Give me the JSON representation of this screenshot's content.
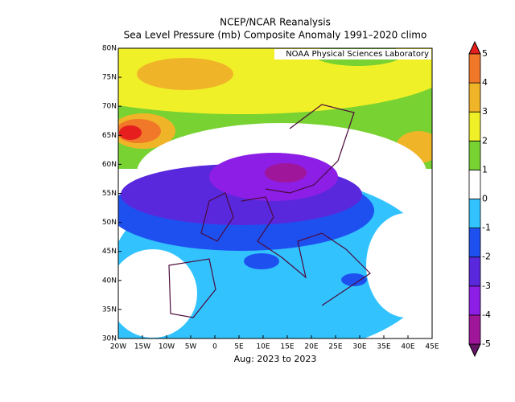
{
  "title": "NCEP/NCAR Reanalysis",
  "subtitle": "Sea Level Pressure (mb) Composite Anomaly 1991–2020 climo",
  "credit": "NOAA Physical Sciences Laboratory",
  "footer": "Aug: 2023 to 2023",
  "lon_ticks": [
    {
      "value": -20,
      "label": "20W"
    },
    {
      "value": -15,
      "label": "15W"
    },
    {
      "value": -10,
      "label": "10W"
    },
    {
      "value": -5,
      "label": "5W"
    },
    0,
    {
      "value": 5,
      "label": "5E"
    },
    {
      "value": 10,
      "label": "10E"
    },
    {
      "value": 15,
      "label": "15E"
    },
    {
      "value": 20,
      "label": "20E"
    },
    {
      "value": 25,
      "label": "25E"
    },
    {
      "value": 30,
      "label": "30E"
    },
    {
      "value": 35,
      "label": "35E"
    },
    {
      "value": 40,
      "label": "40E"
    },
    {
      "value": 45,
      "label": "45E"
    }
  ],
  "lat_ticks": [
    {
      "value": 30,
      "label": "30N"
    },
    {
      "value": 35,
      "label": "35N"
    },
    {
      "value": 40,
      "label": "40N"
    },
    {
      "value": 45,
      "label": "45N"
    },
    {
      "value": 50,
      "label": "50N"
    },
    {
      "value": 55,
      "label": "55N"
    },
    {
      "value": 60,
      "label": "60N"
    },
    {
      "value": 65,
      "label": "65N"
    },
    {
      "value": 70,
      "label": "70N"
    },
    {
      "value": 75,
      "label": "75N"
    },
    {
      "value": 80,
      "label": "80N"
    }
  ],
  "colorbar": {
    "levels": [
      -5,
      -4,
      -3,
      -2,
      -1,
      0,
      1,
      2,
      3,
      4,
      5
    ],
    "colors": [
      "#641464",
      "#a0169b",
      "#8c1ee6",
      "#5a28dc",
      "#1e50f0",
      "#32c3ff",
      "#ffffff",
      "#78d232",
      "#f0f028",
      "#f0b428",
      "#f07828",
      "#e61e1e"
    ]
  }
}
